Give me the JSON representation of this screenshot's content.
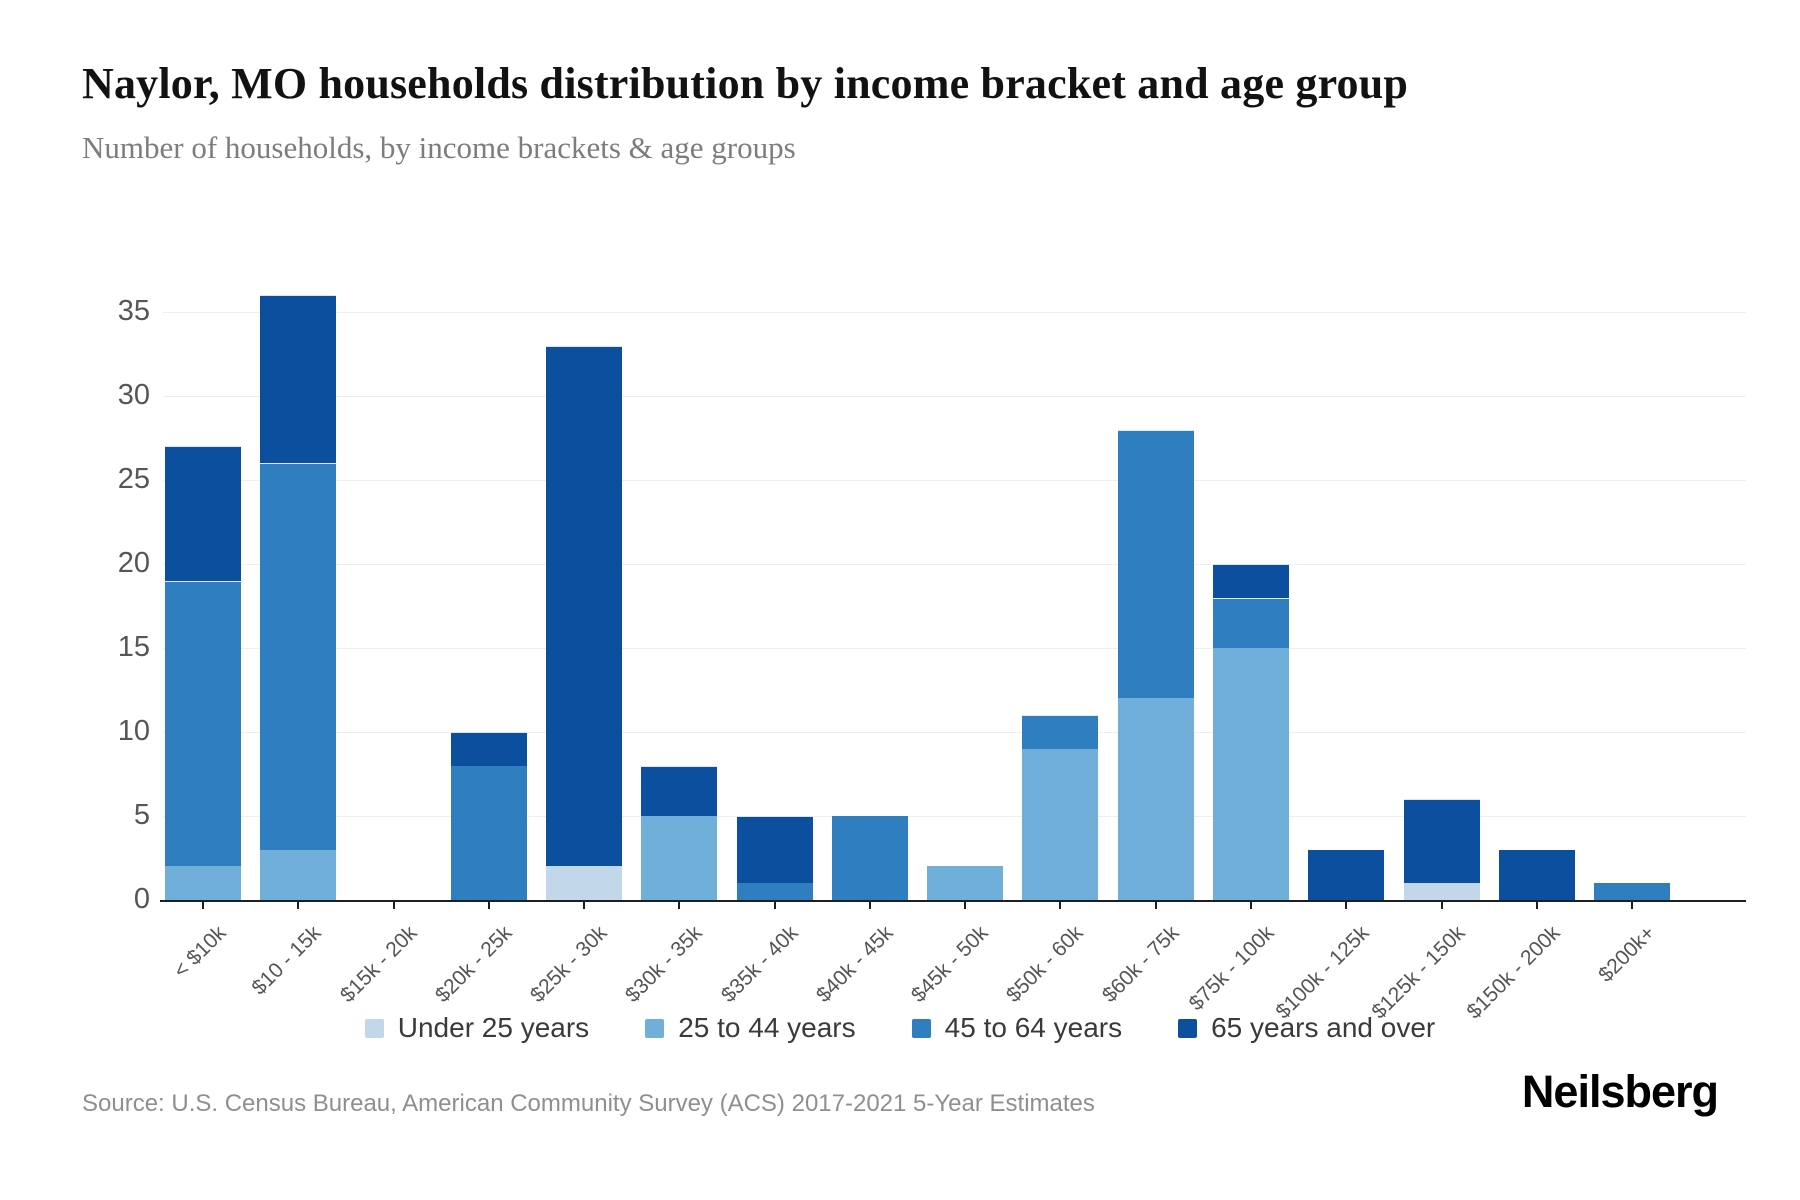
{
  "header": {
    "title": "Naylor, MO households distribution by income bracket and age group",
    "subtitle": "Number of households, by income brackets & age groups"
  },
  "chart_data": {
    "type": "bar",
    "stacked": true,
    "title": "Naylor, MO households distribution by income bracket and age group",
    "subtitle": "Number of households, by income brackets & age groups",
    "xlabel": "",
    "ylabel": "",
    "ylim": [
      0,
      36
    ],
    "yticks": [
      0,
      5,
      10,
      15,
      20,
      25,
      30,
      35
    ],
    "grid": "horizontal",
    "legend_position": "bottom",
    "categories": [
      "< $10k",
      "$10 - 15k",
      "$15k - 20k",
      "$20k - 25k",
      "$25k - 30k",
      "$30k - 35k",
      "$35k - 40k",
      "$40k - 45k",
      "$45k - 50k",
      "$50k - 60k",
      "$60k - 75k",
      "$75k - 100k",
      "$100k - 125k",
      "$125k - 150k",
      "$150k - 200k",
      "$200k+"
    ],
    "series": [
      {
        "name": "Under 25 years",
        "color": "#c2d8ea",
        "values": [
          0,
          0,
          0,
          0,
          2,
          0,
          0,
          0,
          0,
          0,
          0,
          0,
          0,
          1,
          0,
          0
        ]
      },
      {
        "name": "25 to 44 years",
        "color": "#6fafd9",
        "values": [
          2,
          3,
          0,
          0,
          0,
          5,
          0,
          0,
          2,
          9,
          12,
          15,
          0,
          0,
          0,
          0
        ]
      },
      {
        "name": "45 to 64 years",
        "color": "#2f7ebf",
        "values": [
          17,
          23,
          0,
          8,
          0,
          0,
          1,
          5,
          0,
          2,
          16,
          3,
          0,
          0,
          0,
          1
        ]
      },
      {
        "name": "65 years and over",
        "color": "#0b4f9e",
        "values": [
          8,
          10,
          0,
          2,
          31,
          3,
          4,
          0,
          0,
          0,
          0,
          2,
          3,
          5,
          3,
          0
        ]
      }
    ],
    "totals": [
      27,
      36,
      0,
      10,
      33,
      8,
      5,
      5,
      2,
      11,
      28,
      20,
      3,
      6,
      3,
      1
    ]
  },
  "footer": {
    "source": "Source: U.S. Census Bureau, American Community Survey (ACS) 2017-2021 5-Year Estimates",
    "brand": "Neilsberg"
  }
}
